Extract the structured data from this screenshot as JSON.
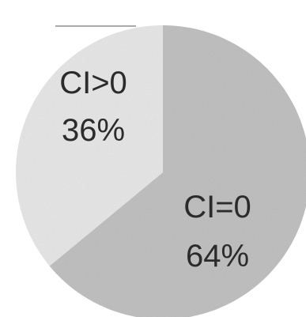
{
  "chart_data": {
    "type": "pie",
    "slices": [
      {
        "label": "CI=0",
        "percent_label": "64%",
        "value": 64,
        "color": "#c9c9c9"
      },
      {
        "label": "CI>0",
        "percent_label": "36%",
        "value": 36,
        "color": "#f1f1f1"
      }
    ],
    "start": "12 o'clock",
    "direction": "clockwise"
  }
}
